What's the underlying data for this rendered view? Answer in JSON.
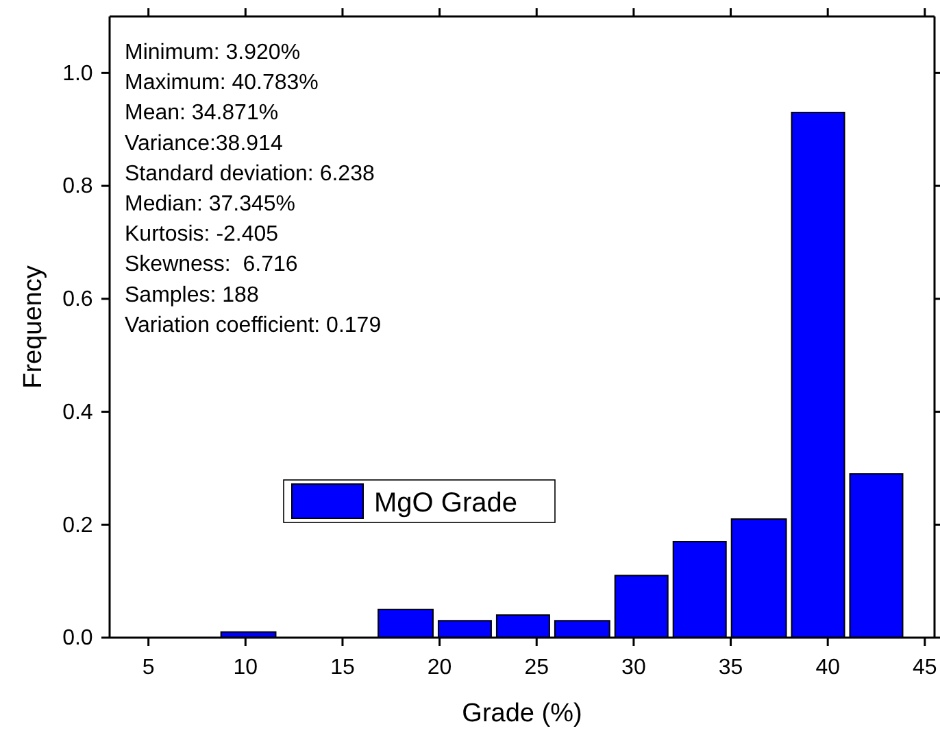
{
  "chart_data": {
    "type": "histogram",
    "xlabel": "Grade (%)",
    "ylabel": "Frequency",
    "bins": [
      8.6,
      11.7,
      16.7,
      19.8,
      22.8,
      25.8,
      28.9,
      31.9,
      34.9,
      38.0,
      41.0,
      44.0
    ],
    "series": [
      {
        "name": "MgO Grade",
        "color": "#0000ff",
        "values": [
          0.01,
          0,
          0.05,
          0.03,
          0.04,
          0.03,
          0.11,
          0.17,
          0.21,
          0.93,
          0.29
        ]
      }
    ],
    "xlim": [
      3,
      45.5
    ],
    "xticks": [
      5,
      10,
      15,
      20,
      25,
      30,
      35,
      40,
      45
    ],
    "ylim": [
      0,
      1.1
    ],
    "yticks": [
      {
        "value": 0,
        "label": "0.0"
      },
      {
        "value": 0.2,
        "label": "0.2"
      },
      {
        "value": 0.4,
        "label": "0.4"
      },
      {
        "value": 0.6,
        "label": "0.6"
      },
      {
        "value": 0.8,
        "label": "0.8"
      },
      {
        "value": 1.0,
        "label": "1.0"
      }
    ],
    "annotations": [
      "Minimum: 3.920%",
      "Maximum: 40.783%",
      "Mean: 34.871%",
      "Variance:38.914",
      "Standard deviation: 6.238",
      "Median: 37.345%",
      "Kurtosis: -2.405",
      "Skewness:  6.716",
      "Samples: 188",
      "Variation coefficient: 0.179"
    ],
    "legend": "bottom left",
    "grid": false
  }
}
